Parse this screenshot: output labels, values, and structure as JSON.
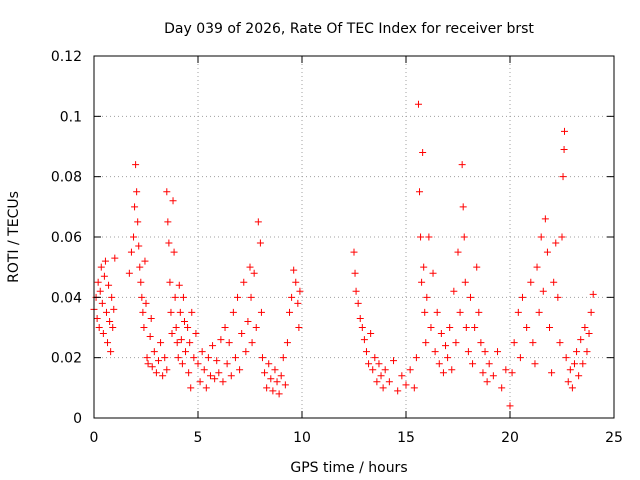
{
  "chart_data": {
    "type": "scatter",
    "title": "Day 039 of 2026, Rate Of TEC Index for receiver brst",
    "xlabel": "GPS time / hours",
    "ylabel": "ROTI / TECUs",
    "xlim": [
      0,
      25
    ],
    "ylim": [
      0,
      0.12
    ],
    "xticks": [
      0,
      5,
      10,
      15,
      20,
      25
    ],
    "xtick_labels": [
      "0",
      "5",
      "10",
      "15",
      "20",
      "25"
    ],
    "yticks": [
      0,
      0.02,
      0.04,
      0.06,
      0.08,
      0.1,
      0.12
    ],
    "ytick_labels": [
      "0",
      "0.02",
      "0.04",
      "0.06",
      "0.08",
      "0.1",
      "0.12"
    ],
    "grid": true,
    "marker": "+",
    "color": "#ff0000",
    "series": [
      {
        "points": [
          [
            0.0,
            0.036
          ],
          [
            0.1,
            0.04
          ],
          [
            0.15,
            0.033
          ],
          [
            0.2,
            0.045
          ],
          [
            0.25,
            0.03
          ],
          [
            0.3,
            0.042
          ],
          [
            0.35,
            0.05
          ],
          [
            0.4,
            0.038
          ],
          [
            0.45,
            0.028
          ],
          [
            0.5,
            0.047
          ],
          [
            0.55,
            0.052
          ],
          [
            0.6,
            0.035
          ],
          [
            0.65,
            0.025
          ],
          [
            0.7,
            0.044
          ],
          [
            0.75,
            0.032
          ],
          [
            0.8,
            0.022
          ],
          [
            0.85,
            0.04
          ],
          [
            0.9,
            0.03
          ],
          [
            0.95,
            0.036
          ],
          [
            1.0,
            0.053
          ],
          [
            1.7,
            0.048
          ],
          [
            1.8,
            0.055
          ],
          [
            1.9,
            0.06
          ],
          [
            1.95,
            0.07
          ],
          [
            2.0,
            0.084
          ],
          [
            2.05,
            0.075
          ],
          [
            2.1,
            0.065
          ],
          [
            2.15,
            0.057
          ],
          [
            2.2,
            0.05
          ],
          [
            2.25,
            0.045
          ],
          [
            2.3,
            0.04
          ],
          [
            2.35,
            0.035
          ],
          [
            2.4,
            0.03
          ],
          [
            2.45,
            0.052
          ],
          [
            2.5,
            0.038
          ],
          [
            2.55,
            0.02
          ],
          [
            2.6,
            0.018
          ],
          [
            2.7,
            0.027
          ],
          [
            2.75,
            0.033
          ],
          [
            2.8,
            0.017
          ],
          [
            2.9,
            0.022
          ],
          [
            3.0,
            0.015
          ],
          [
            3.1,
            0.019
          ],
          [
            3.2,
            0.025
          ],
          [
            3.3,
            0.014
          ],
          [
            3.4,
            0.02
          ],
          [
            3.5,
            0.016
          ],
          [
            3.5,
            0.075
          ],
          [
            3.55,
            0.065
          ],
          [
            3.6,
            0.058
          ],
          [
            3.65,
            0.045
          ],
          [
            3.7,
            0.035
          ],
          [
            3.75,
            0.028
          ],
          [
            3.8,
            0.072
          ],
          [
            3.85,
            0.055
          ],
          [
            3.9,
            0.04
          ],
          [
            3.95,
            0.03
          ],
          [
            4.0,
            0.025
          ],
          [
            4.05,
            0.02
          ],
          [
            4.1,
            0.044
          ],
          [
            4.15,
            0.035
          ],
          [
            4.2,
            0.026
          ],
          [
            4.25,
            0.018
          ],
          [
            4.3,
            0.04
          ],
          [
            4.35,
            0.032
          ],
          [
            4.4,
            0.022
          ],
          [
            4.5,
            0.03
          ],
          [
            4.55,
            0.015
          ],
          [
            4.6,
            0.025
          ],
          [
            4.65,
            0.01
          ],
          [
            4.7,
            0.035
          ],
          [
            4.8,
            0.02
          ],
          [
            4.9,
            0.028
          ],
          [
            5.0,
            0.018
          ],
          [
            5.1,
            0.012
          ],
          [
            5.2,
            0.022
          ],
          [
            5.3,
            0.016
          ],
          [
            5.4,
            0.01
          ],
          [
            5.5,
            0.02
          ],
          [
            5.6,
            0.014
          ],
          [
            5.7,
            0.024
          ],
          [
            5.8,
            0.013
          ],
          [
            5.9,
            0.019
          ],
          [
            6.0,
            0.015
          ],
          [
            6.1,
            0.026
          ],
          [
            6.2,
            0.012
          ],
          [
            6.3,
            0.03
          ],
          [
            6.4,
            0.018
          ],
          [
            6.5,
            0.025
          ],
          [
            6.6,
            0.014
          ],
          [
            6.7,
            0.035
          ],
          [
            6.8,
            0.02
          ],
          [
            6.9,
            0.04
          ],
          [
            7.0,
            0.016
          ],
          [
            7.1,
            0.028
          ],
          [
            7.2,
            0.045
          ],
          [
            7.3,
            0.022
          ],
          [
            7.4,
            0.032
          ],
          [
            7.5,
            0.05
          ],
          [
            7.55,
            0.04
          ],
          [
            7.6,
            0.025
          ],
          [
            7.7,
            0.048
          ],
          [
            7.8,
            0.03
          ],
          [
            7.9,
            0.065
          ],
          [
            8.0,
            0.058
          ],
          [
            8.05,
            0.035
          ],
          [
            8.1,
            0.02
          ],
          [
            8.2,
            0.015
          ],
          [
            8.3,
            0.01
          ],
          [
            8.4,
            0.018
          ],
          [
            8.5,
            0.013
          ],
          [
            8.6,
            0.009
          ],
          [
            8.7,
            0.016
          ],
          [
            8.8,
            0.012
          ],
          [
            8.9,
            0.008
          ],
          [
            9.0,
            0.014
          ],
          [
            9.1,
            0.02
          ],
          [
            9.2,
            0.011
          ],
          [
            9.3,
            0.025
          ],
          [
            9.4,
            0.035
          ],
          [
            9.5,
            0.04
          ],
          [
            9.6,
            0.049
          ],
          [
            9.7,
            0.045
          ],
          [
            9.8,
            0.038
          ],
          [
            9.85,
            0.03
          ],
          [
            9.9,
            0.042
          ],
          [
            12.5,
            0.055
          ],
          [
            12.55,
            0.048
          ],
          [
            12.6,
            0.042
          ],
          [
            12.7,
            0.038
          ],
          [
            12.8,
            0.033
          ],
          [
            12.9,
            0.03
          ],
          [
            13.0,
            0.026
          ],
          [
            13.1,
            0.022
          ],
          [
            13.2,
            0.018
          ],
          [
            13.3,
            0.028
          ],
          [
            13.4,
            0.016
          ],
          [
            13.5,
            0.02
          ],
          [
            13.6,
            0.012
          ],
          [
            13.7,
            0.018
          ],
          [
            13.8,
            0.014
          ],
          [
            13.9,
            0.01
          ],
          [
            14.0,
            0.016
          ],
          [
            14.2,
            0.012
          ],
          [
            14.4,
            0.019
          ],
          [
            14.6,
            0.009
          ],
          [
            14.8,
            0.014
          ],
          [
            15.0,
            0.011
          ],
          [
            15.2,
            0.016
          ],
          [
            15.4,
            0.01
          ],
          [
            15.5,
            0.02
          ],
          [
            15.6,
            0.104
          ],
          [
            15.65,
            0.075
          ],
          [
            15.7,
            0.06
          ],
          [
            15.75,
            0.045
          ],
          [
            15.8,
            0.088
          ],
          [
            15.85,
            0.05
          ],
          [
            15.9,
            0.035
          ],
          [
            15.95,
            0.025
          ],
          [
            16.0,
            0.04
          ],
          [
            16.1,
            0.06
          ],
          [
            16.2,
            0.03
          ],
          [
            16.3,
            0.048
          ],
          [
            16.4,
            0.022
          ],
          [
            16.5,
            0.035
          ],
          [
            16.6,
            0.018
          ],
          [
            16.7,
            0.028
          ],
          [
            16.8,
            0.015
          ],
          [
            16.9,
            0.024
          ],
          [
            17.0,
            0.02
          ],
          [
            17.1,
            0.03
          ],
          [
            17.2,
            0.016
          ],
          [
            17.3,
            0.042
          ],
          [
            17.4,
            0.025
          ],
          [
            17.5,
            0.055
          ],
          [
            17.6,
            0.035
          ],
          [
            17.7,
            0.084
          ],
          [
            17.75,
            0.07
          ],
          [
            17.8,
            0.06
          ],
          [
            17.85,
            0.045
          ],
          [
            17.9,
            0.03
          ],
          [
            18.0,
            0.022
          ],
          [
            18.1,
            0.04
          ],
          [
            18.2,
            0.018
          ],
          [
            18.3,
            0.03
          ],
          [
            18.4,
            0.05
          ],
          [
            18.5,
            0.035
          ],
          [
            18.6,
            0.025
          ],
          [
            18.7,
            0.015
          ],
          [
            18.8,
            0.022
          ],
          [
            18.9,
            0.012
          ],
          [
            19.0,
            0.018
          ],
          [
            19.2,
            0.014
          ],
          [
            19.4,
            0.022
          ],
          [
            19.6,
            0.01
          ],
          [
            19.8,
            0.016
          ],
          [
            20.0,
            0.004
          ],
          [
            20.1,
            0.015
          ],
          [
            20.2,
            0.025
          ],
          [
            20.4,
            0.035
          ],
          [
            20.5,
            0.02
          ],
          [
            20.6,
            0.04
          ],
          [
            20.8,
            0.03
          ],
          [
            21.0,
            0.045
          ],
          [
            21.1,
            0.025
          ],
          [
            21.2,
            0.018
          ],
          [
            21.3,
            0.05
          ],
          [
            21.4,
            0.035
          ],
          [
            21.5,
            0.06
          ],
          [
            21.6,
            0.042
          ],
          [
            21.7,
            0.066
          ],
          [
            21.8,
            0.055
          ],
          [
            21.9,
            0.03
          ],
          [
            22.0,
            0.015
          ],
          [
            22.1,
            0.045
          ],
          [
            22.2,
            0.058
          ],
          [
            22.3,
            0.04
          ],
          [
            22.4,
            0.025
          ],
          [
            22.5,
            0.06
          ],
          [
            22.55,
            0.08
          ],
          [
            22.6,
            0.089
          ],
          [
            22.62,
            0.095
          ],
          [
            22.7,
            0.02
          ],
          [
            22.8,
            0.012
          ],
          [
            22.9,
            0.016
          ],
          [
            23.0,
            0.01
          ],
          [
            23.1,
            0.018
          ],
          [
            23.2,
            0.022
          ],
          [
            23.3,
            0.014
          ],
          [
            23.4,
            0.026
          ],
          [
            23.5,
            0.018
          ],
          [
            23.6,
            0.03
          ],
          [
            23.7,
            0.022
          ],
          [
            23.8,
            0.028
          ],
          [
            23.9,
            0.035
          ],
          [
            24.0,
            0.041
          ]
        ]
      }
    ]
  }
}
